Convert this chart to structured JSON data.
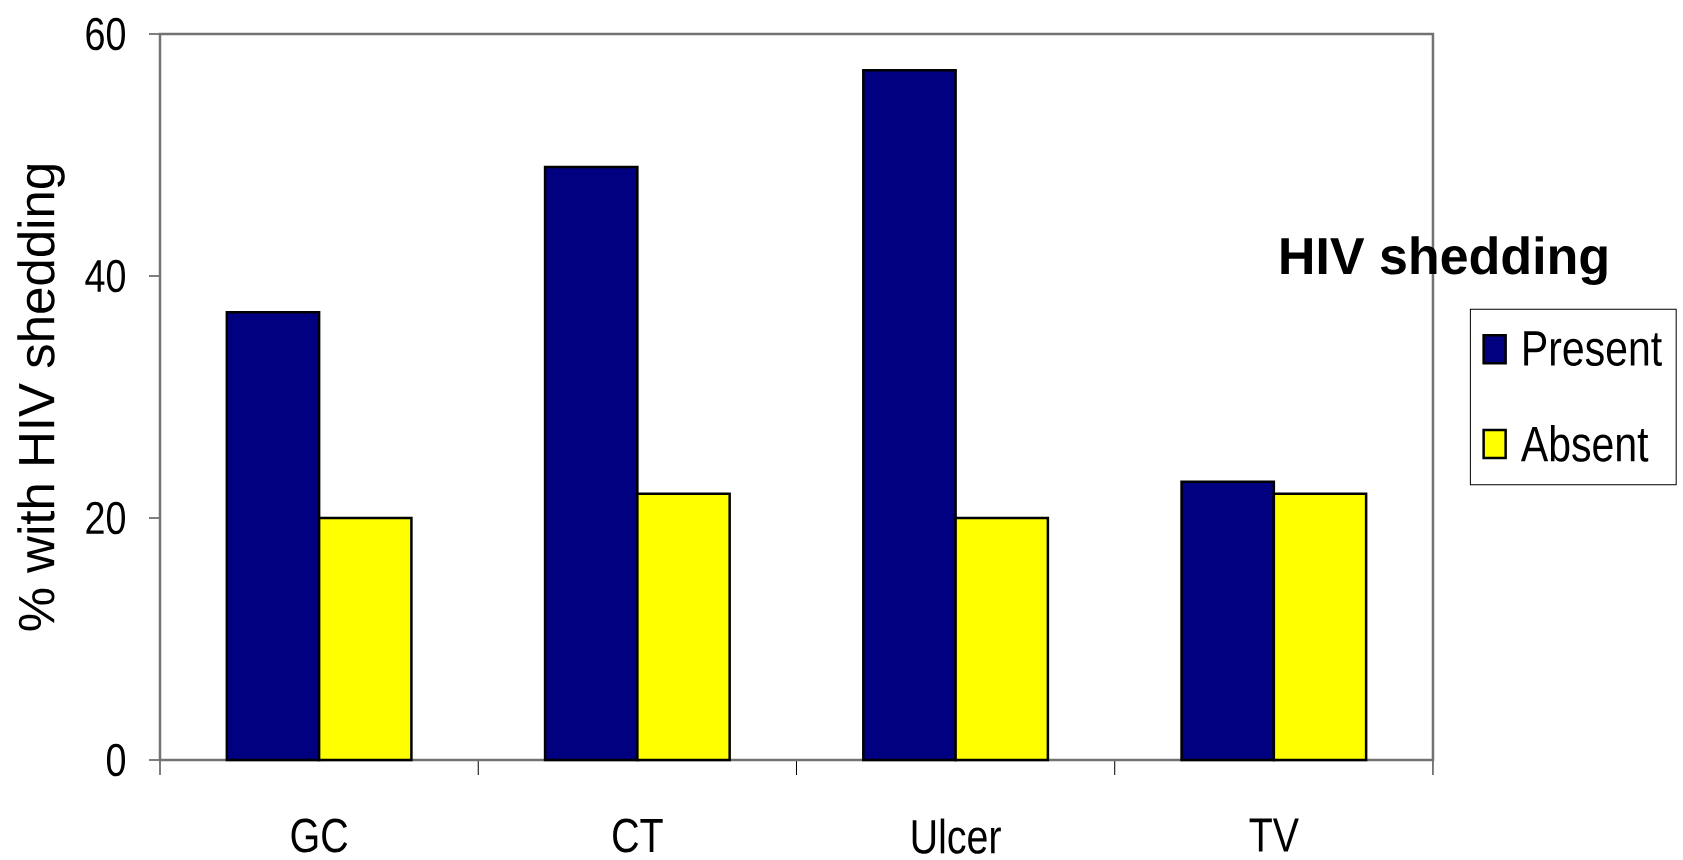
{
  "chart_data": {
    "type": "bar",
    "ylabel": "% with HIV shedding",
    "legend_title": "HIV shedding",
    "categories": [
      "GC",
      "CT",
      "Ulcer",
      "TV"
    ],
    "series": [
      {
        "name": "Present",
        "color": "#000080",
        "values": [
          37,
          49,
          57,
          23
        ]
      },
      {
        "name": "Absent",
        "color": "#ffff00",
        "values": [
          20,
          22,
          20,
          22
        ]
      }
    ],
    "ylim": [
      0,
      60
    ],
    "yticks": [
      0,
      20,
      40,
      60
    ],
    "legend": "right"
  }
}
